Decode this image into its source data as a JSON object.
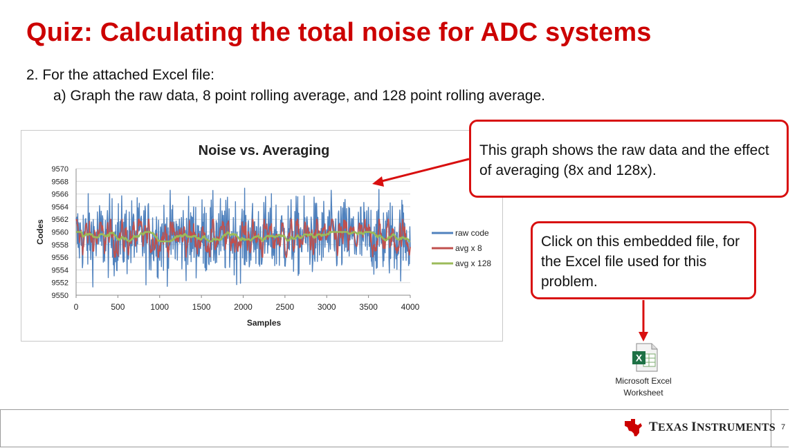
{
  "slide": {
    "title": "Quiz: Calculating the total noise for ADC systems",
    "question_line": "2.  For the attached Excel file:",
    "sub_line": "a) Graph the raw data, 8 point rolling average, and 128 point rolling average.",
    "callout_graph": "This graph shows the raw data and the effect of averaging (8x and 128x).",
    "callout_file": "Click on this embedded file, for the Excel file used for this problem.",
    "embedded_file": {
      "line1": "Microsoft Excel",
      "line2": "Worksheet",
      "icon": "excel-file-icon"
    },
    "footer": {
      "brand_first": "T",
      "brand_rest1": "EXAS ",
      "brand_mid": "I",
      "brand_rest2": "NSTRUMENTS",
      "page_number": "7"
    },
    "colors": {
      "title": "#cc0000",
      "callout_border": "#d80f0f",
      "raw": "#4f81bd",
      "avg8": "#c0504d",
      "avg128": "#9bbb59"
    }
  },
  "chart_data": {
    "type": "line",
    "title": "Noise vs. Averaging",
    "xlabel": "Samples",
    "ylabel": "Codes",
    "xlim": [
      0,
      4000
    ],
    "ylim": [
      9550,
      9570
    ],
    "x_ticks": [
      "0",
      "500",
      "1000",
      "1500",
      "2000",
      "2500",
      "3000",
      "3500",
      "4000"
    ],
    "y_ticks": [
      "9550",
      "9552",
      "9554",
      "9556",
      "9558",
      "9560",
      "9562",
      "9564",
      "9566",
      "9568",
      "9570"
    ],
    "grid": true,
    "legend": "right",
    "series": [
      {
        "name": "raw code",
        "color": "#4f81bd",
        "center": 9559.2,
        "spread": 3.0,
        "min": 9551,
        "max": 9568
      },
      {
        "name": "avg x  8",
        "color": "#c0504d",
        "center": 9559.2,
        "spread": 1.1,
        "min": 9556,
        "max": 9562
      },
      {
        "name": "avg x 128",
        "color": "#9bbb59",
        "center": 9559.2,
        "spread": 0.3,
        "min": 9558.5,
        "max": 9560
      }
    ]
  }
}
